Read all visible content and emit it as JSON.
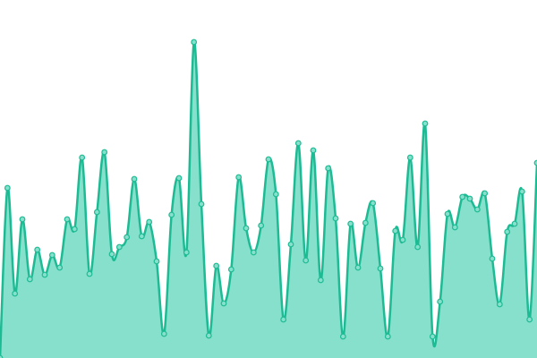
{
  "chart_data": {
    "type": "area",
    "values": [
      0,
      190,
      72,
      155,
      88,
      121,
      93,
      115,
      101,
      155,
      144,
      224,
      94,
      163,
      230,
      116,
      124,
      135,
      200,
      136,
      152,
      108,
      27,
      160,
      201,
      118,
      353,
      172,
      25,
      103,
      61,
      99,
      202,
      145,
      118,
      148,
      222,
      183,
      43,
      127,
      240,
      109,
      232,
      87,
      212,
      156,
      24,
      150,
      101,
      151,
      173,
      100,
      24,
      142,
      132,
      224,
      124,
      262,
      24,
      63,
      161,
      146,
      180,
      178,
      166,
      184,
      111,
      60,
      141,
      150,
      186,
      43,
      218
    ],
    "ylim": [
      0,
      400
    ],
    "color": "#1dbb94",
    "fill": "#86e0cb",
    "markers": true
  }
}
